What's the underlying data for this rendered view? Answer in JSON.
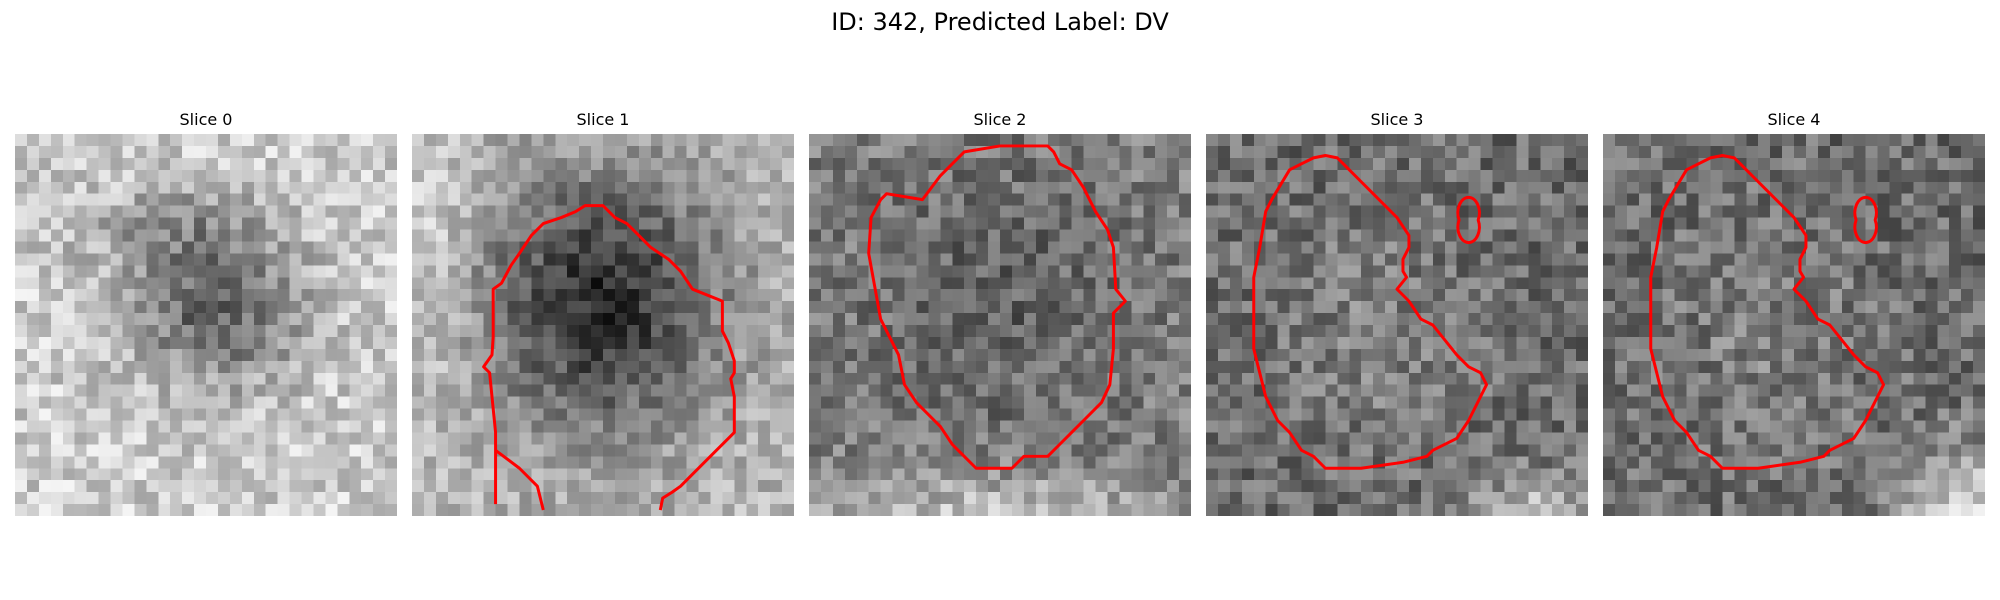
{
  "figure": {
    "title": "ID: 342, Predicted Label: DV"
  },
  "colors": {
    "contour": "#ff0000",
    "background": "#ffffff",
    "colormap": "gray"
  },
  "panels": [
    {
      "title": "Slice 0"
    },
    {
      "title": "Slice 1"
    },
    {
      "title": "Slice 2"
    },
    {
      "title": "Slice 3"
    },
    {
      "title": "Slice 4"
    }
  ]
}
